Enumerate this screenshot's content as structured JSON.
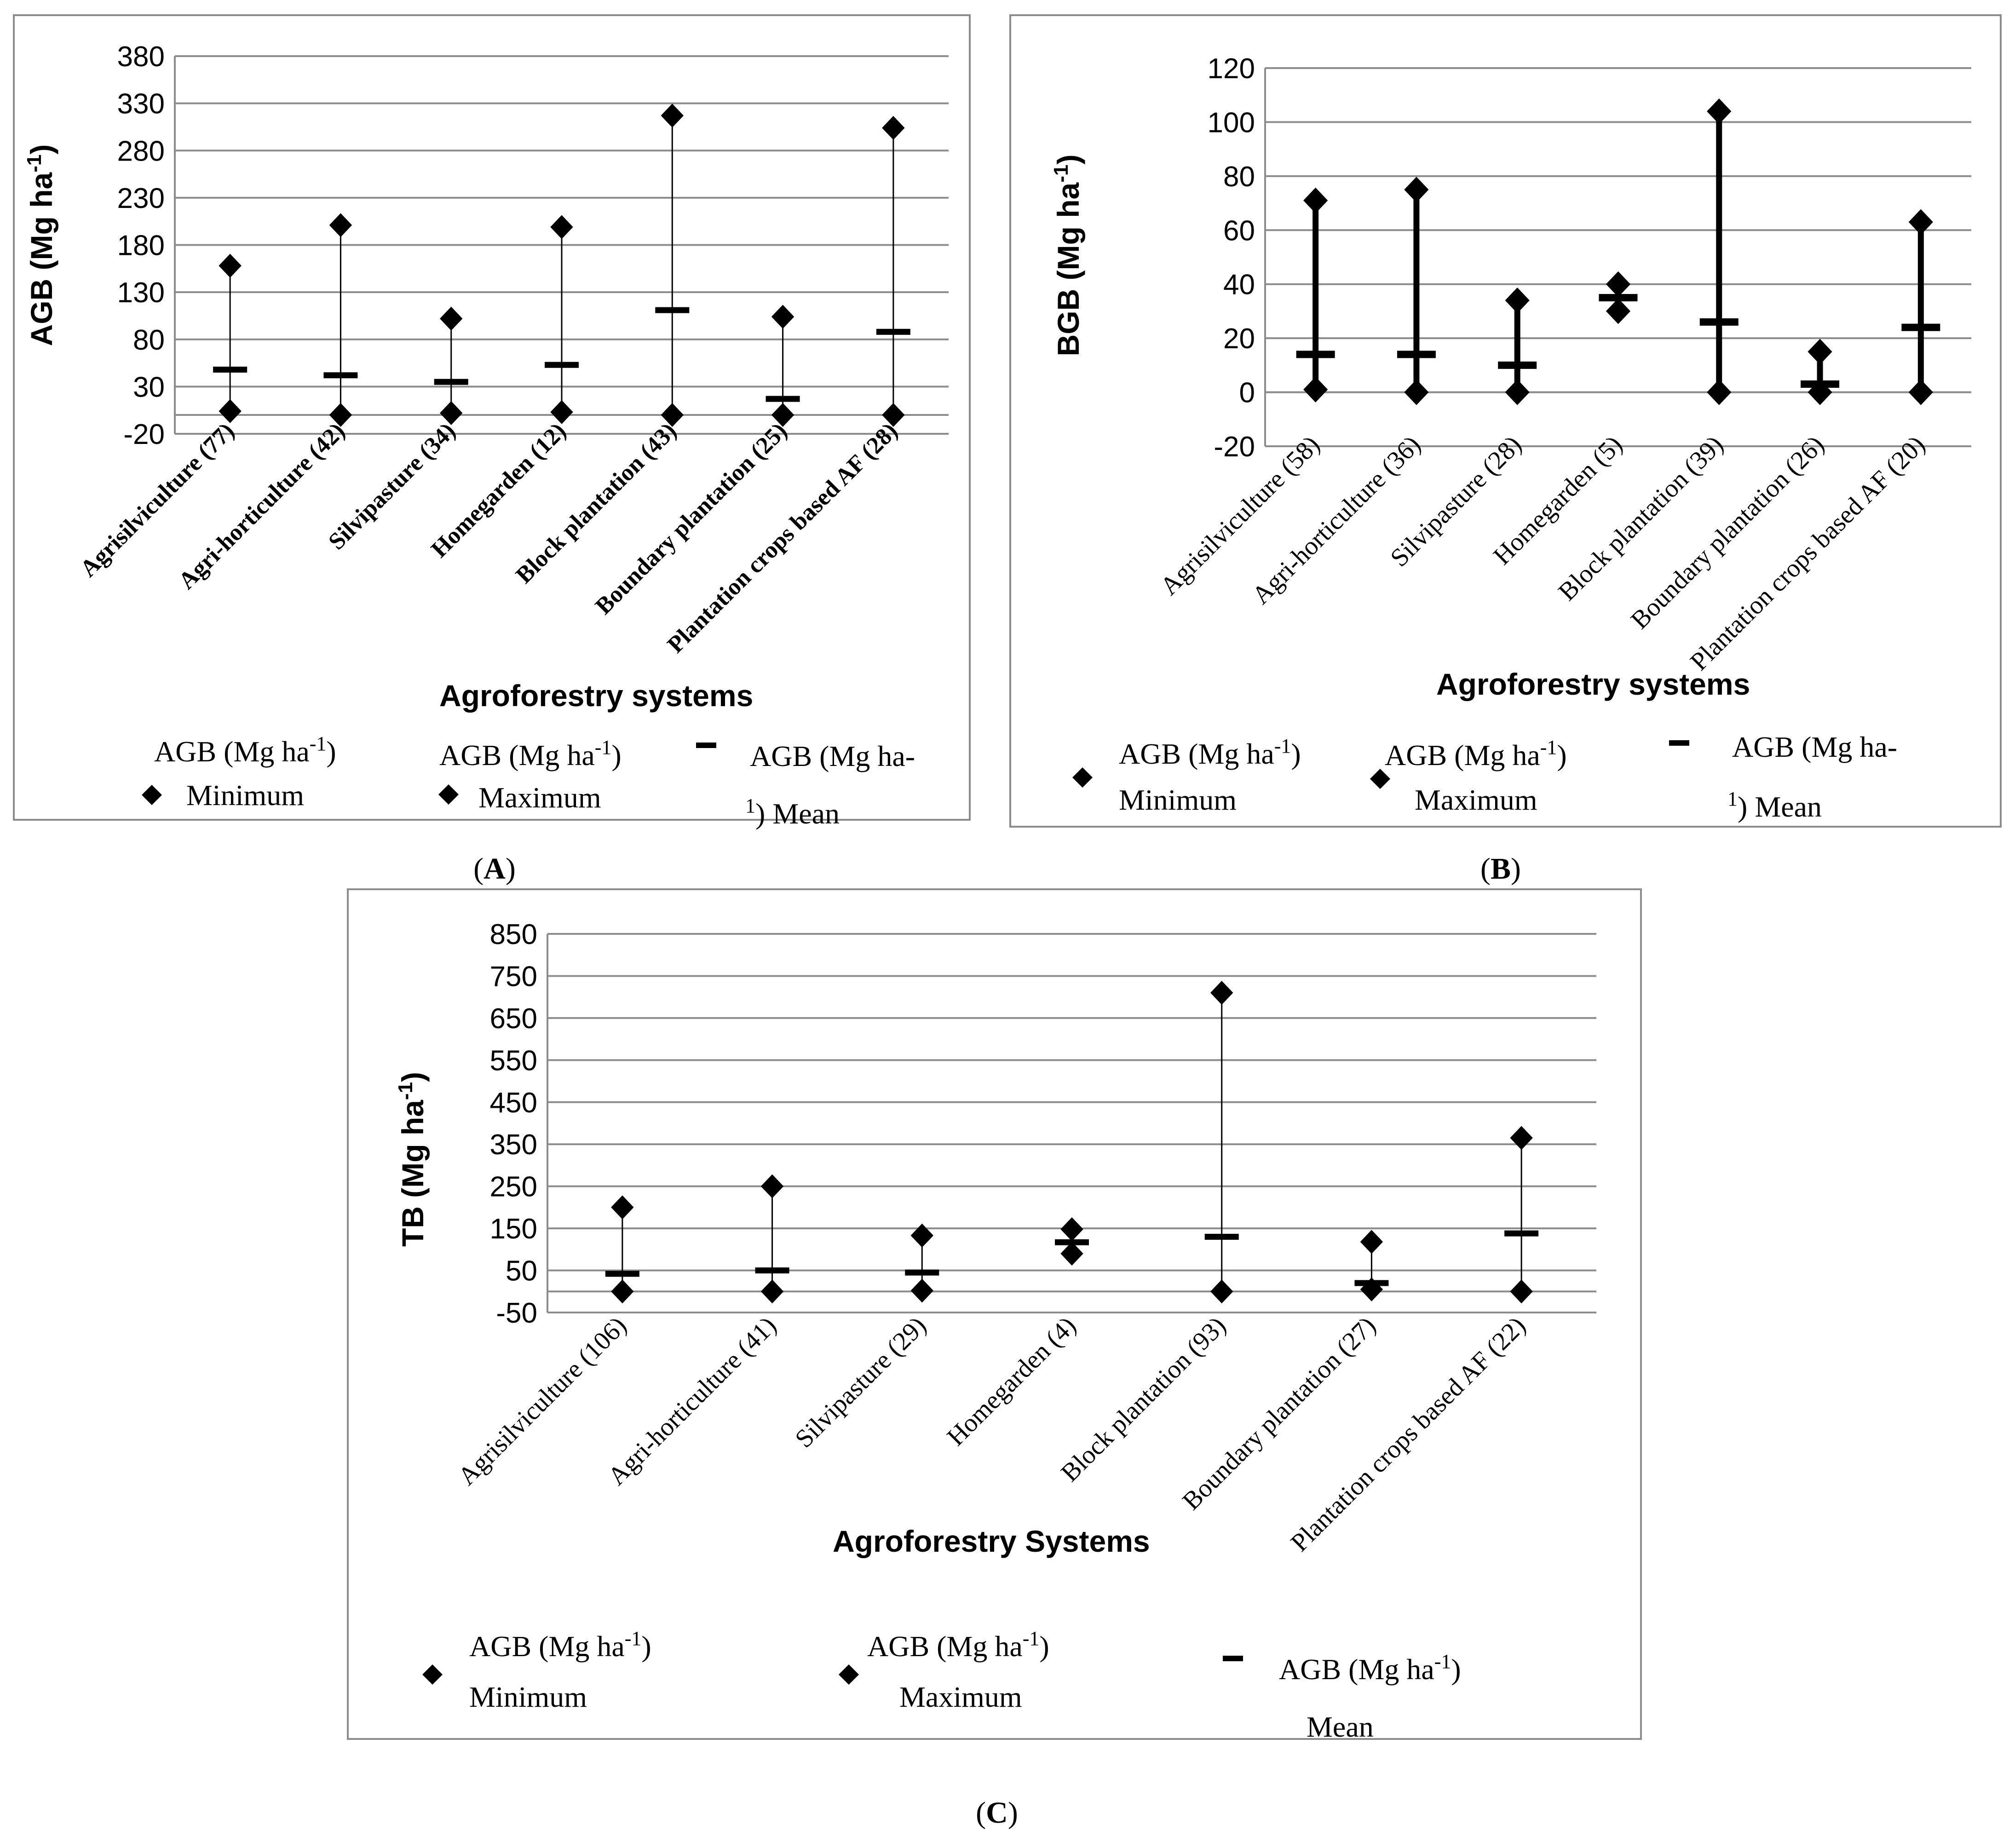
{
  "chart_data": [
    {
      "panel": "A",
      "type": "scatter",
      "panel_label": "A",
      "xlabel": "Agroforestry systems",
      "ylabel": "AGB (Mg ha-1)",
      "ylim": [
        -20,
        380
      ],
      "yticks": [
        "380",
        "330",
        "280",
        "230",
        "180",
        "130",
        "80",
        "30",
        "-20"
      ],
      "categories": [
        "Agrisilviculture (77)",
        "Agri-horticulture (42)",
        "Silvipasture (34)",
        "Homegarden (12)",
        "Block plantation (43)",
        "Boundary plantation (25)",
        "Plantation crops based AF (28)"
      ],
      "series": [
        {
          "name": "AGB (Mg ha-1) Minimum",
          "values": [
            4,
            0,
            2,
            3,
            0,
            0,
            0
          ]
        },
        {
          "name": "AGB (Mg ha-1) Maximum",
          "values": [
            158,
            201,
            102,
            199,
            317,
            104,
            304
          ]
        },
        {
          "name": "AGB (Mg ha-1) Mean",
          "values": [
            48,
            42,
            35,
            53,
            111,
            17,
            88
          ]
        }
      ],
      "legend": [
        {
          "line1": "AGB (Mg ha",
          "sup": "-1",
          "line1_end": ")",
          "line2": "Minimum"
        },
        {
          "line1": "AGB (Mg ha",
          "sup": "-1",
          "line1_end": ")",
          "line2": "Maximum"
        },
        {
          "line1": "AGB (Mg ha-",
          "sup": "1",
          "line1_end": ") Mean",
          "line2": ""
        }
      ],
      "legend_position": "bottom"
    },
    {
      "panel": "B",
      "type": "scatter",
      "panel_label": "B",
      "xlabel": "Agroforestry systems",
      "ylabel": "BGB (Mg ha-1)",
      "ylim": [
        -20,
        120
      ],
      "yticks": [
        "120",
        "100",
        "80",
        "60",
        "40",
        "20",
        "0",
        "-20"
      ],
      "categories": [
        "Agrisilviculture (58)",
        "Agri-horticulture (36)",
        "Silvipasture (28)",
        "Homegarden (5)",
        "Block plantation (39)",
        "Boundary plantation (26)",
        "Plantation crops based AF (20)"
      ],
      "series": [
        {
          "name": "AGB (Mg ha-1) Minimum",
          "values": [
            1,
            0,
            0,
            30,
            0,
            0,
            0
          ]
        },
        {
          "name": "AGB (Mg ha-1) Maximum",
          "values": [
            71,
            75,
            34,
            40,
            104,
            15,
            63
          ]
        },
        {
          "name": "AGB (Mg ha-1) Mean",
          "values": [
            14,
            14,
            10,
            35,
            26,
            3,
            24
          ]
        }
      ],
      "legend": [
        {
          "line1": "AGB (Mg ha",
          "sup": "-1",
          "line1_end": ")",
          "line2": "Minimum"
        },
        {
          "line1": "AGB (Mg ha",
          "sup": "-1",
          "line1_end": ")",
          "line2": "Maximum"
        },
        {
          "line1": "AGB (Mg ha-",
          "sup": "1",
          "line1_end": ")  Mean",
          "line2": ""
        }
      ],
      "legend_position": "bottom"
    },
    {
      "panel": "C",
      "type": "scatter",
      "panel_label": "C",
      "xlabel": "Agroforestry Systems",
      "ylabel": "TB (Mg ha-1)",
      "ylim": [
        -50,
        850
      ],
      "yticks": [
        "850",
        "750",
        "650",
        "550",
        "450",
        "350",
        "250",
        "150",
        "50",
        "-50"
      ],
      "categories": [
        "Agrisilviculture (106)",
        "Agri-horticulture (41)",
        "Silvipasture (29)",
        "Homegarden (4)",
        "Block plantation (93)",
        "Boundary plantation (27)",
        "Plantation crops based AF (22)"
      ],
      "series": [
        {
          "name": "AGB (Mg ha-1) Minimum",
          "values": [
            0,
            0,
            2,
            90,
            0,
            5,
            0
          ]
        },
        {
          "name": "AGB (Mg ha-1) Maximum",
          "values": [
            200,
            250,
            133,
            148,
            710,
            118,
            365
          ]
        },
        {
          "name": "AGB (Mg ha-1) Mean",
          "values": [
            42,
            50,
            45,
            117,
            130,
            20,
            138
          ]
        }
      ],
      "legend": [
        {
          "line1": "AGB (Mg ha",
          "sup": "-1",
          "line1_end": ")",
          "line2": "Minimum"
        },
        {
          "line1": "AGB (Mg ha",
          "sup": "-1",
          "line1_end": ")",
          "line2": "Maximum"
        },
        {
          "line1": "AGB (Mg ha",
          "sup": "-1",
          "line1_end": ")",
          "line2": "Mean"
        }
      ],
      "legend_position": "bottom"
    }
  ]
}
